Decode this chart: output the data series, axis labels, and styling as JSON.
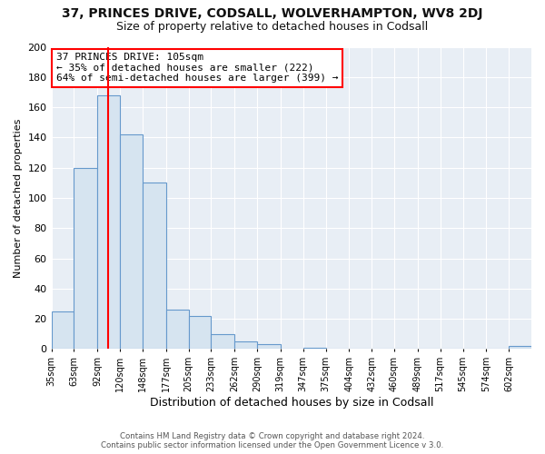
{
  "title": "37, PRINCES DRIVE, CODSALL, WOLVERHAMPTON, WV8 2DJ",
  "subtitle": "Size of property relative to detached houses in Codsall",
  "xlabel": "Distribution of detached houses by size in Codsall",
  "ylabel": "Number of detached properties",
  "bar_labels": [
    "35sqm",
    "63sqm",
    "92sqm",
    "120sqm",
    "148sqm",
    "177sqm",
    "205sqm",
    "233sqm",
    "262sqm",
    "290sqm",
    "319sqm",
    "347sqm",
    "375sqm",
    "404sqm",
    "432sqm",
    "460sqm",
    "489sqm",
    "517sqm",
    "545sqm",
    "574sqm",
    "602sqm"
  ],
  "bar_values": [
    25,
    120,
    168,
    142,
    110,
    26,
    22,
    10,
    5,
    3,
    0,
    1,
    0,
    0,
    0,
    0,
    0,
    0,
    0,
    0,
    2
  ],
  "bar_color": "#d6e4f0",
  "bar_edgecolor": "#6699cc",
  "bin_edges": [
    35,
    63,
    92,
    120,
    148,
    177,
    205,
    233,
    262,
    290,
    319,
    347,
    375,
    404,
    432,
    460,
    489,
    517,
    545,
    574,
    602,
    630
  ],
  "red_line_x": 105,
  "annotation_title": "37 PRINCES DRIVE: 105sqm",
  "annotation_line1": "← 35% of detached houses are smaller (222)",
  "annotation_line2": "64% of semi-detached houses are larger (399) →",
  "ylim": [
    0,
    200
  ],
  "yticks": [
    0,
    20,
    40,
    60,
    80,
    100,
    120,
    140,
    160,
    180,
    200
  ],
  "footer1": "Contains HM Land Registry data © Crown copyright and database right 2024.",
  "footer2": "Contains public sector information licensed under the Open Government Licence v 3.0.",
  "background_color": "#ffffff",
  "plot_bg_color": "#e8eef5",
  "grid_color": "#ffffff",
  "title_fontsize": 10,
  "subtitle_fontsize": 9
}
